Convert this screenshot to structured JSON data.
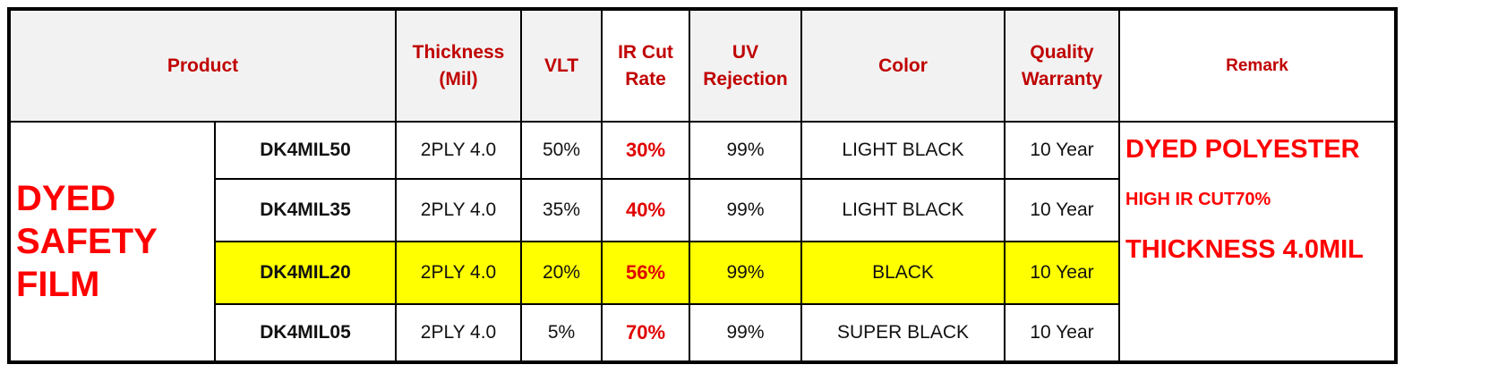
{
  "table": {
    "header": [
      "Product",
      "Thickness (Mil)",
      "VLT",
      "IR Cut Rate",
      "UV Rejection",
      "Color",
      "Quality Warranty",
      "Remark"
    ],
    "category": "DYED SAFETY FILM",
    "rows": [
      [
        "DK4MIL50",
        "2PLY 4.0",
        "50%",
        "30%",
        "99%",
        "LIGHT BLACK",
        "10 Year"
      ],
      [
        "DK4MIL35",
        "2PLY 4.0",
        "35%",
        "40%",
        "99%",
        "LIGHT BLACK",
        "10 Year"
      ],
      [
        "DK4MIL20",
        "2PLY 4.0",
        "20%",
        "56%",
        "99%",
        "BLACK",
        "10 Year"
      ],
      [
        "DK4MIL05",
        "2PLY 4.0",
        "5%",
        "70%",
        "99%",
        "SUPER BLACK",
        "10 Year"
      ]
    ],
    "remark": [
      "DYED POLYESTER",
      "HIGH IR CUT70%",
      "THICKNESS 4.0MIL"
    ]
  }
}
